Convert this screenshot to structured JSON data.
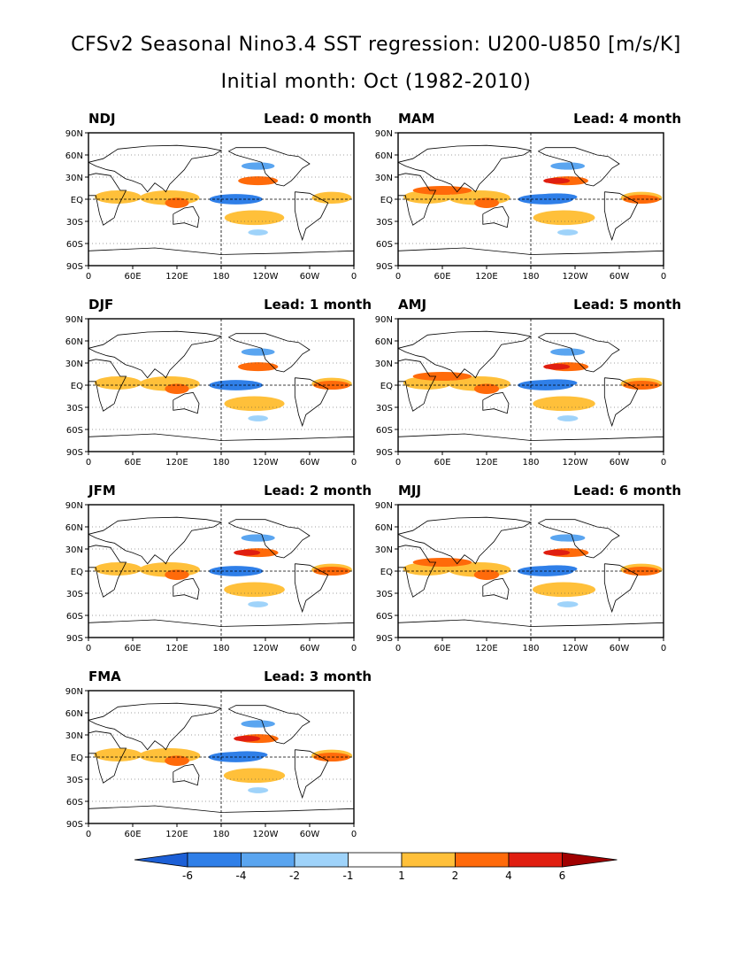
{
  "title_line1": "CFSv2 Seasonal Nino3.4 SST regression: U200-U850 [m/s/K]",
  "title_line2": "Initial month: Oct (1982-2010)",
  "lat_labels": [
    "90N",
    "60N",
    "30N",
    "EQ",
    "30S",
    "60S",
    "90S"
  ],
  "lon_labels": [
    "0",
    "60E",
    "120E",
    "180",
    "120W",
    "60W",
    "0"
  ],
  "panels": [
    {
      "season": "NDJ",
      "lead": "Lead: 0 month"
    },
    {
      "season": "DJF",
      "lead": "Lead: 1 month"
    },
    {
      "season": "JFM",
      "lead": "Lead: 2 month"
    },
    {
      "season": "FMA",
      "lead": "Lead: 3 month"
    },
    {
      "season": "MAM",
      "lead": "Lead: 4 month"
    },
    {
      "season": "AMJ",
      "lead": "Lead: 5 month"
    },
    {
      "season": "MJJ",
      "lead": "Lead: 6 month"
    }
  ],
  "colorbar": {
    "labels": [
      "-6",
      "-4",
      "-2",
      "-1",
      "1",
      "2",
      "4",
      "6"
    ],
    "colors": [
      "#1c5fd6",
      "#2f7fe8",
      "#5aa5f0",
      "#9fd3fa",
      "#ffffff",
      "#ffc03a",
      "#ff6a0a",
      "#e01e10",
      "#a00000"
    ]
  },
  "field_colors": {
    "neg_strong": "#2f7fe8",
    "neg_mid": "#5aa5f0",
    "neg_weak": "#9fd3fa",
    "pos_weak": "#ffc03a",
    "pos_mid": "#ff6a0a",
    "pos_strong": "#e01e10"
  }
}
